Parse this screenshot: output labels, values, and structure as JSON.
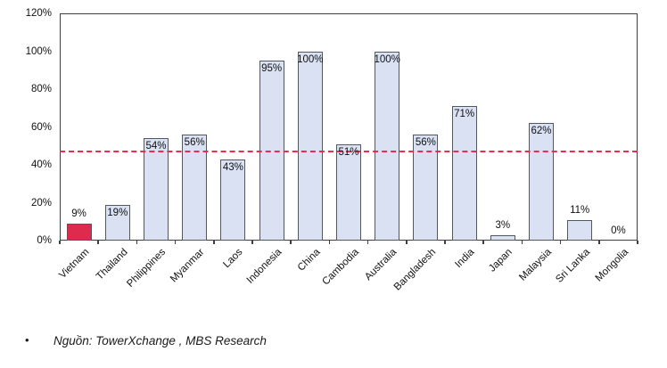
{
  "chart_data": {
    "type": "bar",
    "categories": [
      "Vietnam",
      "Thailand",
      "Philippines",
      "Myanmar",
      "Laos",
      "Indonesia",
      "China",
      "Cambodia",
      "Australia",
      "Bangladesh",
      "India",
      "Japan",
      "Malaysia",
      "Sri Lanka",
      "Mongolia"
    ],
    "values": [
      9,
      19,
      54,
      56,
      43,
      95,
      100,
      51,
      100,
      56,
      71,
      3,
      62,
      11,
      0
    ],
    "data_labels": [
      "9%",
      "19%",
      "54%",
      "56%",
      "43%",
      "95%",
      "100%",
      "51%",
      "100%",
      "56%",
      "71%",
      "3%",
      "62%",
      "11%",
      "0%"
    ],
    "title": "",
    "xlabel": "",
    "ylabel": "",
    "ylim": [
      0,
      120
    ],
    "ytick_step": 20,
    "ytick_suffix": "%",
    "grid": false,
    "legend": false,
    "reference_line": {
      "value": 47,
      "style": "dashed",
      "color": "#ea2c50"
    },
    "bar_fill": "#dae1f3",
    "bar_border": "#53585f",
    "highlight_index": 0,
    "highlight_fill": "#dd2a4d"
  },
  "footer": {
    "bullet": "•",
    "source_text": "Nguồn: TowerXchange , MBS Research"
  }
}
